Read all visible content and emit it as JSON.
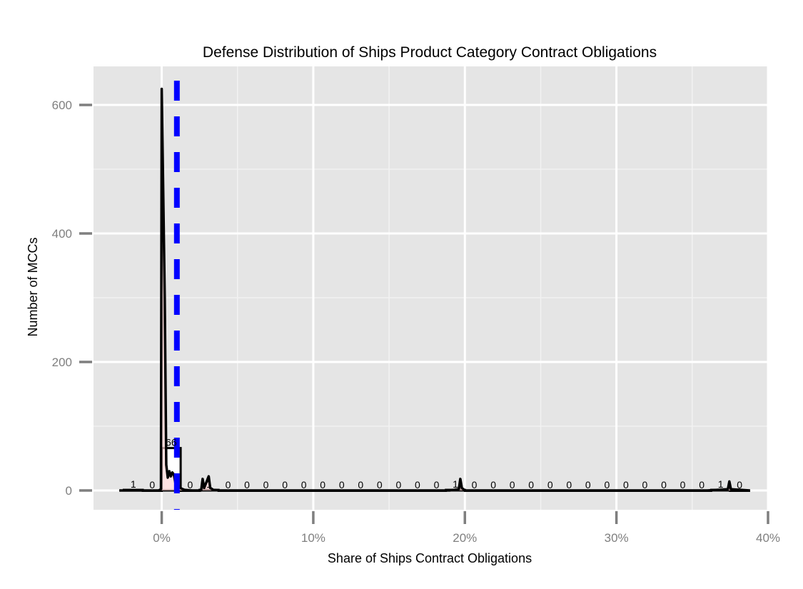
{
  "chart_data": {
    "type": "histogram",
    "title": "Defense Distribution of Ships Product Category Contract Obligations",
    "xlabel": "Share of Ships Contract Obligations",
    "ylabel": "Number of MCCs",
    "xlim": [
      -0.045,
      0.4
    ],
    "ylim": [
      -30,
      660
    ],
    "x_ticks": [
      {
        "value": 0.0,
        "label": "0%"
      },
      {
        "value": 0.1,
        "label": "10%"
      },
      {
        "value": 0.2,
        "label": "20%"
      },
      {
        "value": 0.3,
        "label": "30%"
      },
      {
        "value": 0.4,
        "label": "40%"
      }
    ],
    "y_ticks": [
      {
        "value": 0,
        "label": "0"
      },
      {
        "value": 200,
        "label": "200"
      },
      {
        "value": 400,
        "label": "400"
      },
      {
        "value": 600,
        "label": "600"
      }
    ],
    "histogram_bars": [
      {
        "x0": -0.0125,
        "x1": 0.0,
        "count": 0,
        "label": "0"
      },
      {
        "x0": 0.0,
        "x1": 0.0125,
        "count": 66,
        "label": "66"
      },
      {
        "x0": -0.025,
        "x1": -0.0125,
        "count": 1,
        "label": "1"
      },
      {
        "x0": 0.0125,
        "x1": 0.025,
        "count": 0,
        "label": "0"
      },
      {
        "x0": 0.025,
        "x1": 0.0375,
        "count": 1,
        "label": "1"
      },
      {
        "x0": 0.0375,
        "x1": 0.05,
        "count": 0,
        "label": "0"
      },
      {
        "x0": 0.05,
        "x1": 0.0625,
        "count": 0,
        "label": "0"
      },
      {
        "x0": 0.0625,
        "x1": 0.075,
        "count": 0,
        "label": "0"
      },
      {
        "x0": 0.075,
        "x1": 0.0875,
        "count": 0,
        "label": "0"
      },
      {
        "x0": 0.0875,
        "x1": 0.1,
        "count": 0,
        "label": "0"
      },
      {
        "x0": 0.1,
        "x1": 0.1125,
        "count": 0,
        "label": "0"
      },
      {
        "x0": 0.1125,
        "x1": 0.125,
        "count": 0,
        "label": "0"
      },
      {
        "x0": 0.125,
        "x1": 0.1375,
        "count": 0,
        "label": "0"
      },
      {
        "x0": 0.1375,
        "x1": 0.15,
        "count": 0,
        "label": "0"
      },
      {
        "x0": 0.15,
        "x1": 0.1625,
        "count": 0,
        "label": "0"
      },
      {
        "x0": 0.1625,
        "x1": 0.175,
        "count": 0,
        "label": "0"
      },
      {
        "x0": 0.175,
        "x1": 0.1875,
        "count": 0,
        "label": "0"
      },
      {
        "x0": 0.1875,
        "x1": 0.2,
        "count": 1,
        "label": "1"
      },
      {
        "x0": 0.2,
        "x1": 0.2125,
        "count": 0,
        "label": "0"
      },
      {
        "x0": 0.2125,
        "x1": 0.225,
        "count": 0,
        "label": "0"
      },
      {
        "x0": 0.225,
        "x1": 0.2375,
        "count": 0,
        "label": "0"
      },
      {
        "x0": 0.2375,
        "x1": 0.25,
        "count": 0,
        "label": "0"
      },
      {
        "x0": 0.25,
        "x1": 0.2625,
        "count": 0,
        "label": "0"
      },
      {
        "x0": 0.2625,
        "x1": 0.275,
        "count": 0,
        "label": "0"
      },
      {
        "x0": 0.275,
        "x1": 0.2875,
        "count": 0,
        "label": "0"
      },
      {
        "x0": 0.2875,
        "x1": 0.3,
        "count": 0,
        "label": "0"
      },
      {
        "x0": 0.3,
        "x1": 0.3125,
        "count": 0,
        "label": "0"
      },
      {
        "x0": 0.3125,
        "x1": 0.325,
        "count": 0,
        "label": "0"
      },
      {
        "x0": 0.325,
        "x1": 0.3375,
        "count": 0,
        "label": "0"
      },
      {
        "x0": 0.3375,
        "x1": 0.35,
        "count": 0,
        "label": "0"
      },
      {
        "x0": 0.35,
        "x1": 0.3625,
        "count": 0,
        "label": "0"
      },
      {
        "x0": 0.3625,
        "x1": 0.375,
        "count": 1,
        "label": "1"
      },
      {
        "x0": 0.375,
        "x1": 0.3875,
        "count": 0,
        "label": "0"
      }
    ],
    "density_line": [
      [
        -0.028,
        0
      ],
      [
        -0.002,
        0
      ],
      [
        -0.0005,
        2
      ],
      [
        0.0,
        625
      ],
      [
        0.002,
        300
      ],
      [
        0.003,
        40
      ],
      [
        0.004,
        20
      ],
      [
        0.005,
        30
      ],
      [
        0.006,
        22
      ],
      [
        0.007,
        28
      ],
      [
        0.008,
        25
      ],
      [
        0.009,
        12
      ],
      [
        0.01,
        15
      ],
      [
        0.011,
        8
      ],
      [
        0.012,
        5
      ],
      [
        0.013,
        3
      ],
      [
        0.015,
        1
      ],
      [
        0.02,
        0
      ],
      [
        0.026,
        0
      ],
      [
        0.027,
        18
      ],
      [
        0.028,
        4
      ],
      [
        0.029,
        10
      ],
      [
        0.031,
        22
      ],
      [
        0.032,
        4
      ],
      [
        0.034,
        1
      ],
      [
        0.038,
        0
      ],
      [
        0.19,
        0
      ],
      [
        0.196,
        2
      ],
      [
        0.197,
        18
      ],
      [
        0.198,
        4
      ],
      [
        0.2,
        0
      ],
      [
        0.36,
        0
      ],
      [
        0.3735,
        2
      ],
      [
        0.3745,
        14
      ],
      [
        0.3755,
        2
      ],
      [
        0.388,
        0
      ]
    ],
    "vline": {
      "x": 0.01,
      "color": "#0000ff",
      "style": "dashed"
    },
    "colors": {
      "panel_background": "#e5e5e5",
      "grid_major": "#ffffff",
      "grid_minor": "#f2f2f2",
      "bar_fill": "#ffffff",
      "bar_outline": "#000000",
      "density": "#000000",
      "density_fill": "#ffd6d6",
      "vline": "#0000ff"
    },
    "legend": "none",
    "grid": true
  }
}
